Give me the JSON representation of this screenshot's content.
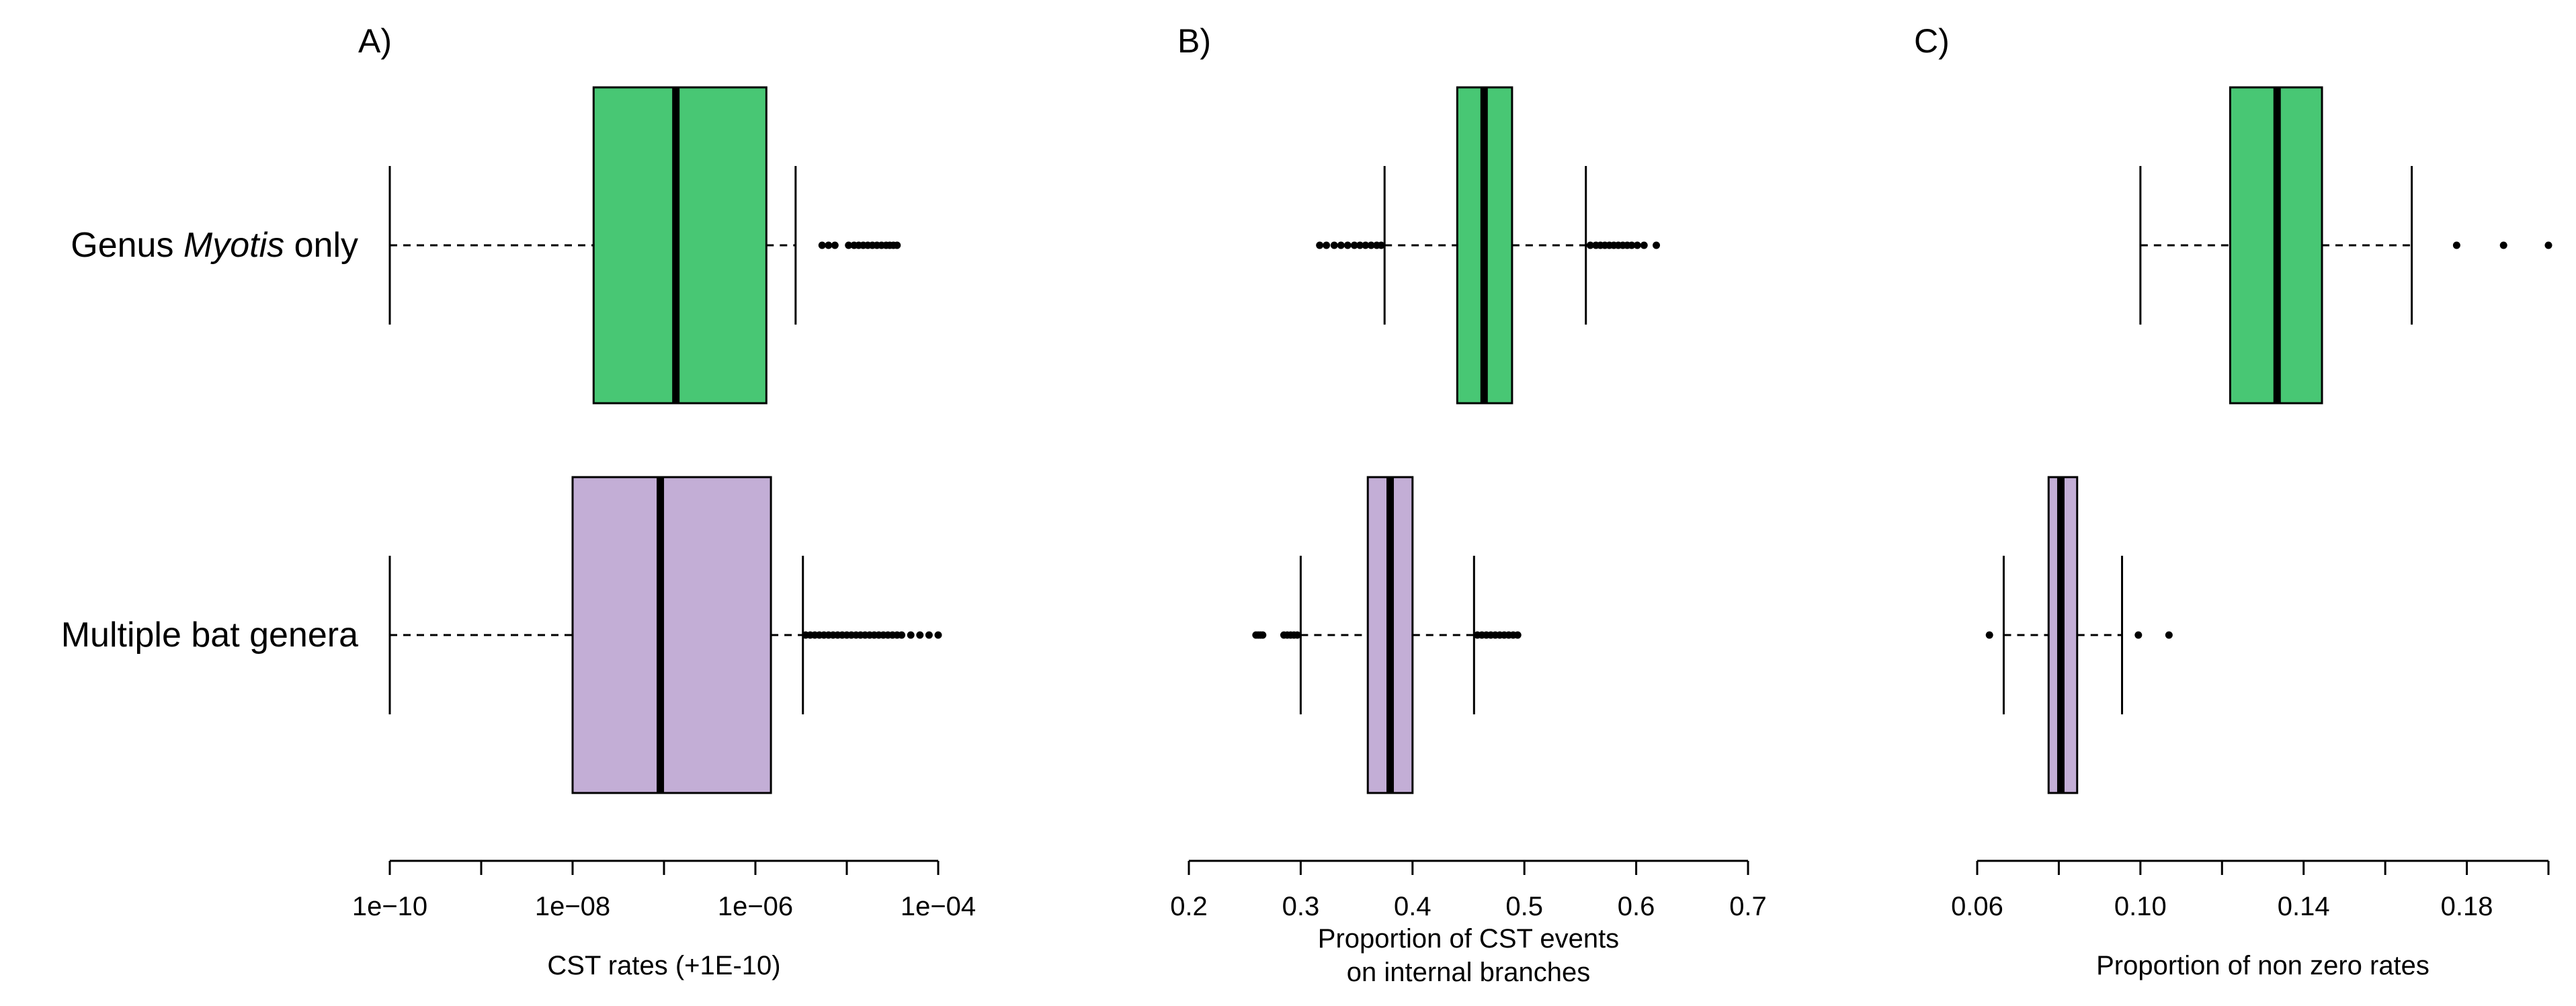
{
  "chart_data": {
    "type": "boxplot",
    "row_labels": [
      {
        "prefix": "Genus ",
        "italic": "Myotis",
        "suffix": " only",
        "color": "#48C774"
      },
      {
        "prefix": "Multiple bat genera",
        "italic": "",
        "suffix": "",
        "color": "#C3AED6"
      }
    ],
    "panels": [
      {
        "panel_label": "A)",
        "xlabel": [
          "CST rates (+1E-10)"
        ],
        "scale": "log10",
        "xlim": [
          -10,
          -4
        ],
        "major_ticks": [
          -10,
          -8,
          -6,
          -4
        ],
        "minor_ticks": [
          -9,
          -7,
          -5
        ],
        "tick_labels": [
          "1e−10",
          "1e−08",
          "1e−06",
          "1e−04"
        ],
        "series": [
          {
            "name": "Genus Myotis only",
            "whisker_low": -10.0,
            "q1": -7.77,
            "median": -6.87,
            "q3": -5.88,
            "whisker_high": -5.56,
            "outliers": [
              -5.27,
              -5.2,
              -5.13,
              -4.98,
              -4.92,
              -4.87,
              -4.82,
              -4.77,
              -4.72,
              -4.67,
              -4.62,
              -4.57,
              -4.53,
              -4.49,
              -4.45
            ]
          },
          {
            "name": "Multiple bat genera",
            "whisker_low": -10.0,
            "q1": -8.0,
            "median": -7.04,
            "q3": -5.83,
            "whisker_high": -5.48,
            "outliers": [
              -5.45,
              -5.4,
              -5.35,
              -5.3,
              -5.25,
              -5.2,
              -5.15,
              -5.1,
              -5.05,
              -5.0,
              -4.95,
              -4.9,
              -4.85,
              -4.8,
              -4.75,
              -4.7,
              -4.65,
              -4.6,
              -4.55,
              -4.5,
              -4.45,
              -4.4,
              -4.3,
              -4.2,
              -4.1,
              -4.0
            ]
          }
        ]
      },
      {
        "panel_label": "B)",
        "xlabel": [
          "Proportion of CST events",
          "on internal branches"
        ],
        "scale": "linear",
        "xlim": [
          0.2,
          0.7
        ],
        "major_ticks": [
          0.2,
          0.3,
          0.4,
          0.5,
          0.6,
          0.7
        ],
        "minor_ticks": [],
        "tick_labels": [
          "0.2",
          "0.3",
          "0.4",
          "0.5",
          "0.6",
          "0.7"
        ],
        "series": [
          {
            "name": "Genus Myotis only",
            "whisker_low": 0.375,
            "q1": 0.44,
            "median": 0.464,
            "q3": 0.489,
            "whisker_high": 0.555,
            "outliers": [
              0.317,
              0.323,
              0.33,
              0.336,
              0.342,
              0.348,
              0.353,
              0.358,
              0.363,
              0.368,
              0.372,
              0.559,
              0.564,
              0.568,
              0.572,
              0.576,
              0.58,
              0.584,
              0.588,
              0.592,
              0.596,
              0.601,
              0.607,
              0.618
            ]
          },
          {
            "name": "Multiple bat genera",
            "whisker_low": 0.3,
            "q1": 0.36,
            "median": 0.38,
            "q3": 0.4,
            "whisker_high": 0.455,
            "outliers": [
              0.26,
              0.262,
              0.264,
              0.266,
              0.285,
              0.288,
              0.291,
              0.294,
              0.297,
              0.458,
              0.462,
              0.466,
              0.47,
              0.474,
              0.478,
              0.482,
              0.486,
              0.49,
              0.494
            ]
          }
        ]
      },
      {
        "panel_label": "C)",
        "xlabel": [
          "Proportion of non zero rates"
        ],
        "scale": "linear",
        "xlim": [
          0.06,
          0.2
        ],
        "major_ticks": [
          0.06,
          0.1,
          0.14,
          0.18
        ],
        "minor_ticks": [
          0.08,
          0.12,
          0.16,
          0.2
        ],
        "tick_labels": [
          "0.06",
          "0.10",
          "0.14",
          "0.18"
        ],
        "series": [
          {
            "name": "Genus Myotis only",
            "whisker_low": 0.1,
            "q1": 0.122,
            "median": 0.1335,
            "q3": 0.1445,
            "whisker_high": 0.1665,
            "outliers": [
              0.1775,
              0.189,
              0.2
            ]
          },
          {
            "name": "Multiple bat genera",
            "whisker_low": 0.0665,
            "q1": 0.0775,
            "median": 0.0805,
            "q3": 0.0845,
            "whisker_high": 0.0955,
            "outliers": [
              0.063,
              0.0995,
              0.107
            ]
          }
        ]
      }
    ]
  }
}
